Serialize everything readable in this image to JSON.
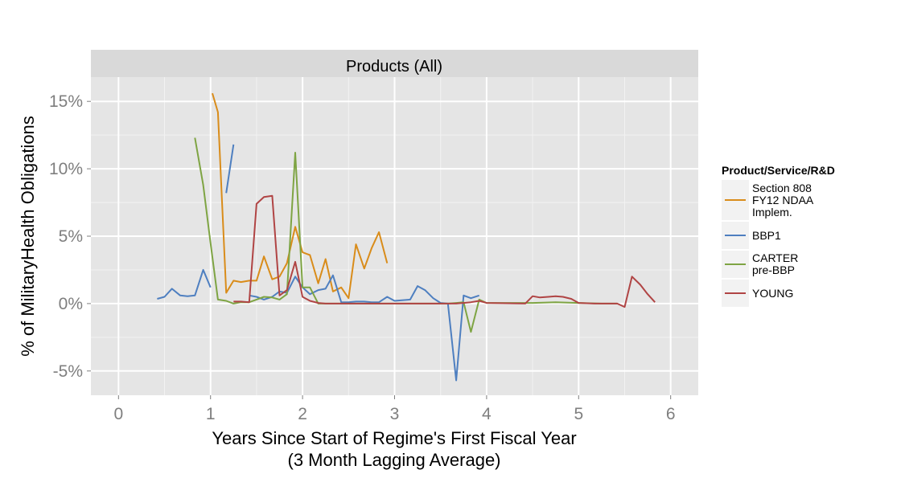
{
  "chart_data": {
    "type": "line",
    "facet_title": "Products (All)",
    "xlabel": "Years Since Start of Regime's First Fiscal Year\n(3 Month Lagging Average)",
    "ylabel": "% of MilitaryHealth Obligations",
    "xlim": [
      -0.3,
      6.3
    ],
    "ylim": [
      -6.8,
      16.8
    ],
    "x_ticks": [
      0,
      1,
      2,
      3,
      4,
      5,
      6
    ],
    "x_tick_labels": [
      "0",
      "1",
      "2",
      "3",
      "4",
      "5",
      "6"
    ],
    "y_ticks": [
      -5,
      0,
      5,
      10,
      15
    ],
    "y_tick_labels": [
      "-5%",
      "0%",
      "5%",
      "10%",
      "15%"
    ],
    "grid": true,
    "legend_title": "Product/Service/R&D",
    "legend_position": "right",
    "series": [
      {
        "name": "Section 808\nFY12 NDAA\nImplem.",
        "color": "#d98c1a",
        "segments": [
          [
            [
              1.02,
              15.6
            ],
            [
              1.08,
              14.2
            ],
            [
              1.17,
              0.8
            ],
            [
              1.25,
              1.7
            ],
            [
              1.33,
              1.6
            ],
            [
              1.42,
              1.7
            ],
            [
              1.5,
              1.7
            ],
            [
              1.58,
              3.5
            ],
            [
              1.67,
              1.8
            ],
            [
              1.75,
              2.0
            ],
            [
              1.83,
              3.0
            ],
            [
              1.92,
              5.7
            ],
            [
              2.0,
              3.8
            ],
            [
              2.08,
              3.6
            ],
            [
              2.17,
              1.5
            ],
            [
              2.25,
              3.3
            ],
            [
              2.33,
              0.9
            ],
            [
              2.42,
              1.2
            ],
            [
              2.5,
              0.4
            ],
            [
              2.58,
              4.4
            ],
            [
              2.67,
              2.6
            ],
            [
              2.75,
              4.1
            ],
            [
              2.83,
              5.3
            ],
            [
              2.92,
              3.0
            ]
          ]
        ]
      },
      {
        "name": "BBP1",
        "color": "#4e7fc0",
        "segments": [
          [
            [
              0.42,
              0.35
            ],
            [
              0.5,
              0.5
            ],
            [
              0.58,
              1.1
            ],
            [
              0.67,
              0.6
            ],
            [
              0.75,
              0.55
            ],
            [
              0.83,
              0.6
            ],
            [
              0.92,
              2.5
            ],
            [
              1.0,
              1.2
            ]
          ],
          [
            [
              1.17,
              8.2
            ],
            [
              1.25,
              11.8
            ]
          ],
          [
            [
              1.42,
              0.6
            ],
            [
              1.5,
              0.5
            ],
            [
              1.58,
              0.3
            ],
            [
              1.67,
              0.5
            ],
            [
              1.75,
              0.9
            ],
            [
              1.83,
              0.8
            ],
            [
              1.92,
              2.0
            ],
            [
              2.0,
              1.2
            ],
            [
              2.08,
              0.7
            ],
            [
              2.17,
              1.0
            ],
            [
              2.25,
              1.1
            ],
            [
              2.33,
              2.1
            ],
            [
              2.42,
              0.1
            ],
            [
              2.5,
              0.1
            ],
            [
              2.58,
              0.15
            ],
            [
              2.67,
              0.15
            ],
            [
              2.75,
              0.1
            ],
            [
              2.83,
              0.1
            ],
            [
              2.92,
              0.5
            ],
            [
              3.0,
              0.2
            ],
            [
              3.08,
              0.25
            ],
            [
              3.17,
              0.3
            ],
            [
              3.25,
              1.3
            ],
            [
              3.33,
              1.0
            ],
            [
              3.42,
              0.4
            ],
            [
              3.5,
              0.05
            ],
            [
              3.58,
              0.0
            ],
            [
              3.67,
              -5.7
            ],
            [
              3.75,
              0.6
            ],
            [
              3.83,
              0.4
            ],
            [
              3.92,
              0.6
            ]
          ]
        ]
      },
      {
        "name": "CARTER\npre-BBP",
        "color": "#7ea443",
        "segments": [
          [
            [
              0.83,
              12.3
            ],
            [
              0.92,
              8.8
            ],
            [
              1.0,
              4.5
            ],
            [
              1.08,
              0.3
            ],
            [
              1.17,
              0.2
            ],
            [
              1.25,
              0.0
            ],
            [
              1.33,
              0.1
            ],
            [
              1.42,
              0.1
            ],
            [
              1.5,
              0.3
            ],
            [
              1.58,
              0.5
            ],
            [
              1.67,
              0.45
            ],
            [
              1.75,
              0.3
            ],
            [
              1.83,
              0.7
            ],
            [
              1.92,
              11.2
            ],
            [
              2.0,
              1.2
            ],
            [
              2.08,
              1.2
            ],
            [
              2.17,
              0.0
            ],
            [
              2.25,
              0.0
            ],
            [
              2.5,
              0.0
            ],
            [
              3.0,
              0.0
            ],
            [
              3.58,
              0.0
            ],
            [
              3.67,
              0.05
            ],
            [
              3.75,
              0.1
            ],
            [
              3.83,
              -2.1
            ],
            [
              3.92,
              0.3
            ],
            [
              4.0,
              0.05
            ],
            [
              4.5,
              0.05
            ],
            [
              4.75,
              0.1
            ],
            [
              5.0,
              0.05
            ],
            [
              5.25,
              0.0
            ],
            [
              5.42,
              0.0
            ]
          ]
        ]
      },
      {
        "name": "YOUNG",
        "color": "#b04444",
        "segments": [
          [
            [
              1.25,
              0.15
            ],
            [
              1.33,
              0.15
            ],
            [
              1.42,
              0.1
            ],
            [
              1.5,
              7.4
            ],
            [
              1.58,
              7.9
            ],
            [
              1.67,
              8.0
            ],
            [
              1.75,
              0.6
            ],
            [
              1.83,
              1.0
            ],
            [
              1.92,
              3.1
            ],
            [
              2.0,
              0.5
            ],
            [
              2.08,
              0.2
            ],
            [
              2.17,
              0.05
            ],
            [
              2.25,
              0.0
            ],
            [
              2.5,
              0.0
            ],
            [
              3.0,
              0.0
            ],
            [
              3.5,
              0.0
            ],
            [
              3.67,
              0.0
            ],
            [
              3.75,
              0.05
            ],
            [
              3.83,
              0.1
            ],
            [
              3.92,
              0.2
            ],
            [
              4.0,
              0.05
            ],
            [
              4.42,
              0.0
            ],
            [
              4.5,
              0.55
            ],
            [
              4.58,
              0.45
            ],
            [
              4.67,
              0.5
            ],
            [
              4.75,
              0.55
            ],
            [
              4.83,
              0.5
            ],
            [
              4.92,
              0.35
            ],
            [
              5.0,
              0.05
            ],
            [
              5.17,
              0.0
            ],
            [
              5.42,
              0.0
            ],
            [
              5.5,
              -0.25
            ],
            [
              5.58,
              2.0
            ],
            [
              5.67,
              1.4
            ],
            [
              5.75,
              0.7
            ],
            [
              5.83,
              0.1
            ]
          ]
        ]
      }
    ]
  }
}
